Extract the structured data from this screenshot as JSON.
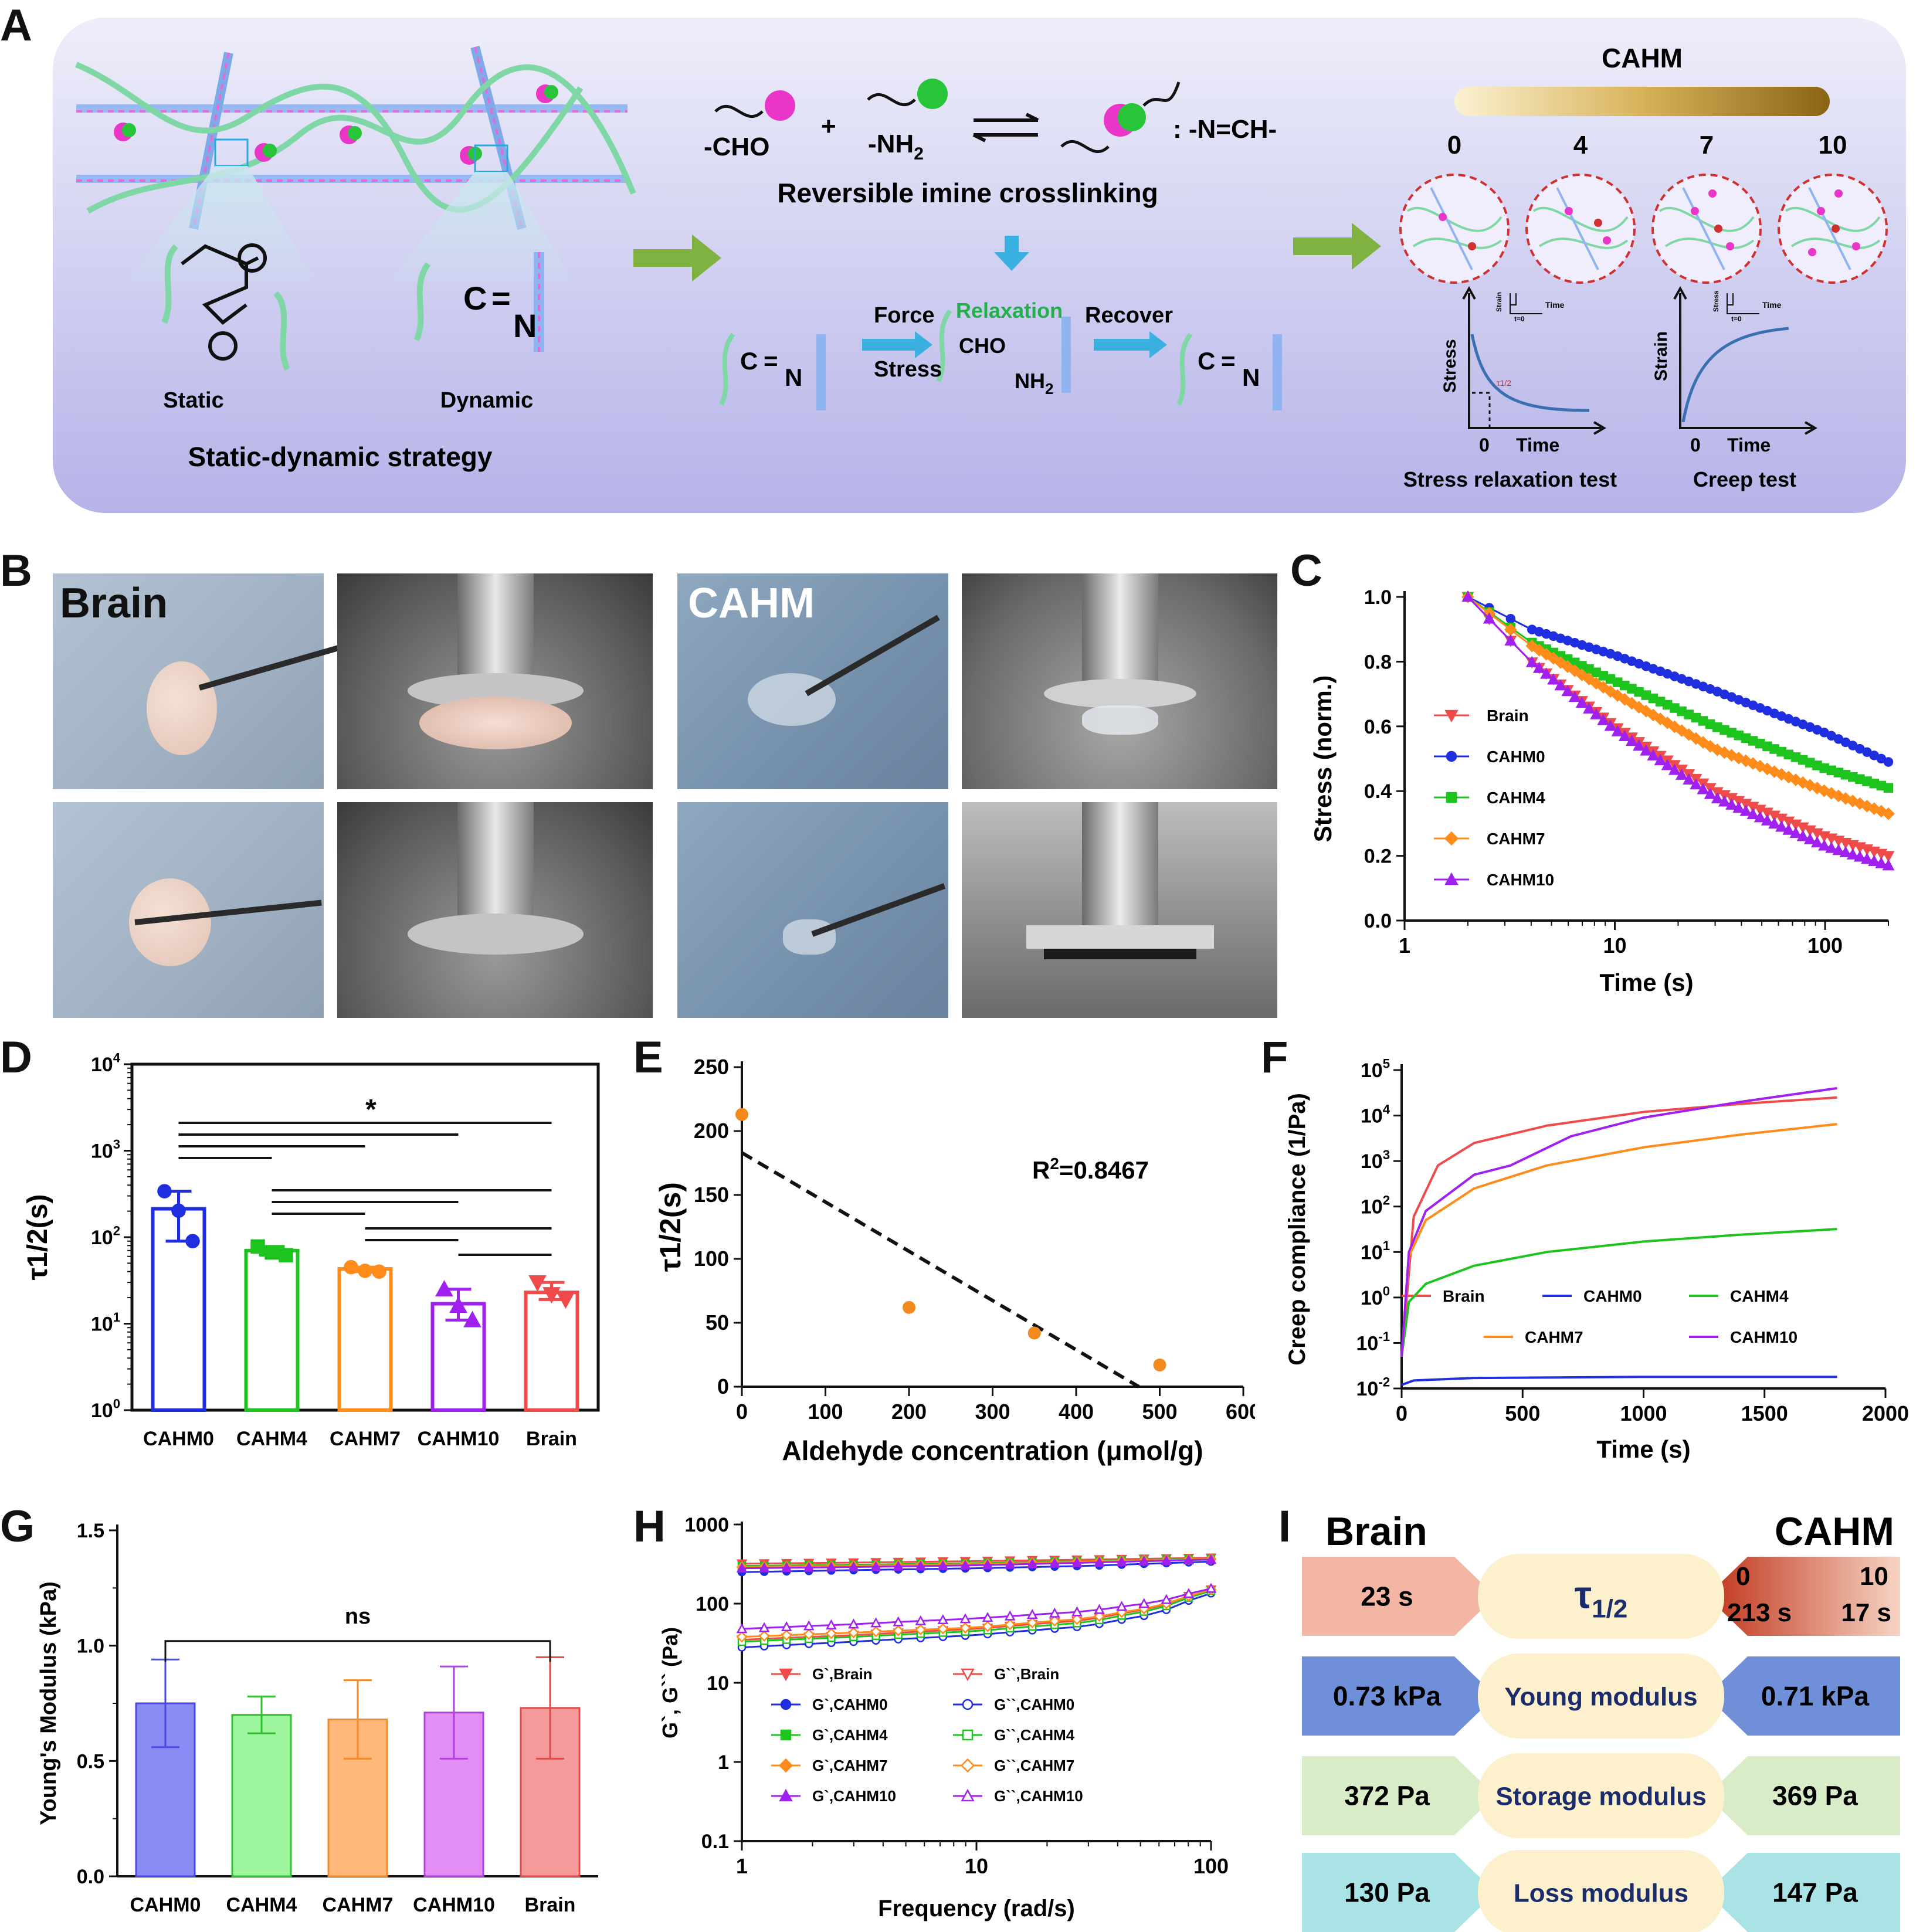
{
  "panel_letters": [
    "A",
    "B",
    "C",
    "D",
    "E",
    "F",
    "G",
    "H",
    "I"
  ],
  "panel_a": {
    "static_label": "Static",
    "dynamic_label": "Dynamic",
    "strategy_label": "Static-dynamic strategy",
    "cho": "-CHO",
    "plus": "+",
    "nh2": "-NH",
    "nh2_sub": "2",
    "imine": ": -N=CH-",
    "reversible": "Reversible imine crosslinking",
    "force": "Force",
    "stress": "Stress",
    "relaxation": "Relaxation",
    "recover": "Recover",
    "cho_fragment": "CHO",
    "nh2_fragment": "NH",
    "cahm_title": "CAHM",
    "cahm_levels": [
      "0",
      "4",
      "7",
      "10"
    ],
    "stress_axis": "Stress",
    "strain_axis": "Strain",
    "time_axis": "Time",
    "zero": "0",
    "tau_half": "τ1/2",
    "mini_strain": "Strain",
    "mini_stress": "Stress",
    "mini_time": "Time",
    "mini_t0": "t=0",
    "stress_test": "Stress relaxation test",
    "creep_test": "Creep test"
  },
  "panel_b": {
    "brain_label": "Brain",
    "cahm_label": "CAHM"
  },
  "chart_c": {
    "chart_data": {
      "type": "line",
      "xlabel": "Time (s)",
      "ylabel": "Stress (norm.)",
      "x_scale": "log",
      "xlim": [
        1,
        200
      ],
      "ylim": [
        0,
        1.0
      ],
      "x_ticks": [
        "1",
        "10",
        "100"
      ],
      "y_ticks": [
        "0.0",
        "0.2",
        "0.4",
        "0.6",
        "0.8",
        "1.0"
      ],
      "legend_position": "left",
      "series": [
        {
          "name": "Brain",
          "color": "#ef4b4b",
          "marker": "triangle-down",
          "x": [
            2,
            4,
            10,
            30,
            100,
            200
          ],
          "y": [
            1.0,
            0.8,
            0.6,
            0.4,
            0.26,
            0.2
          ]
        },
        {
          "name": "CAHM0",
          "color": "#1f2fe0",
          "marker": "circle",
          "x": [
            2,
            4,
            10,
            30,
            100,
            200
          ],
          "y": [
            1.0,
            0.9,
            0.82,
            0.71,
            0.58,
            0.49
          ]
        },
        {
          "name": "CAHM4",
          "color": "#1ec41e",
          "marker": "square",
          "x": [
            2,
            4,
            10,
            30,
            100,
            200
          ],
          "y": [
            1.0,
            0.86,
            0.74,
            0.6,
            0.47,
            0.41
          ]
        },
        {
          "name": "CAHM7",
          "color": "#ff8c1a",
          "marker": "diamond",
          "x": [
            2,
            4,
            10,
            30,
            100,
            200
          ],
          "y": [
            1.0,
            0.85,
            0.7,
            0.53,
            0.4,
            0.33
          ]
        },
        {
          "name": "CAHM10",
          "color": "#a020f0",
          "marker": "triangle-up",
          "x": [
            2,
            4,
            10,
            30,
            100,
            200
          ],
          "y": [
            1.0,
            0.8,
            0.59,
            0.38,
            0.23,
            0.17
          ]
        }
      ]
    }
  },
  "chart_d": {
    "chart_data": {
      "type": "bar",
      "ylabel": "τ1/2(s)",
      "y_scale": "log",
      "ylim": [
        1,
        10000
      ],
      "y_ticks": [
        "10^0",
        "10^1",
        "10^2",
        "10^3",
        "10^4"
      ],
      "categories": [
        "CAHM0",
        "CAHM4",
        "CAHM7",
        "CAHM10",
        "Brain"
      ],
      "values": [
        213,
        70,
        43,
        17,
        23
      ],
      "error_high": [
        340,
        78,
        45,
        25,
        30
      ],
      "error_low": [
        90,
        62,
        40,
        11,
        19
      ],
      "colors": [
        "#1f2fe0",
        "#1ec41e",
        "#ff8c1a",
        "#a020f0",
        "#ef4b4b"
      ],
      "significance": "*"
    }
  },
  "chart_e": {
    "chart_data": {
      "type": "scatter",
      "xlabel": "Aldehyde concentration (μmol/g)",
      "ylabel": "τ1/2(s)",
      "xlim": [
        0,
        600
      ],
      "ylim": [
        0,
        250
      ],
      "x_ticks": [
        "0",
        "100",
        "200",
        "300",
        "400",
        "500",
        "600"
      ],
      "y_ticks": [
        "0",
        "50",
        "100",
        "150",
        "200",
        "250"
      ],
      "points": [
        {
          "x": 0,
          "y": 213
        },
        {
          "x": 200,
          "y": 62
        },
        {
          "x": 350,
          "y": 42
        },
        {
          "x": 500,
          "y": 17
        }
      ],
      "fit_line": {
        "x": [
          0,
          475
        ],
        "y": [
          183,
          0
        ]
      },
      "r2_label": "R",
      "r2_sup": "2",
      "r2_value": "=0.8467"
    }
  },
  "chart_f": {
    "chart_data": {
      "type": "line",
      "xlabel": "Time (s)",
      "ylabel": "Creep compliance (1/Pa)",
      "y_scale": "log",
      "xlim": [
        0,
        2000
      ],
      "ylim": [
        0.01,
        100000
      ],
      "x_ticks": [
        "0",
        "500",
        "1000",
        "1500",
        "2000"
      ],
      "y_ticks": [
        "10^-2",
        "10^-1",
        "10^0",
        "10^1",
        "10^2",
        "10^3",
        "10^4",
        "10^5"
      ],
      "series": [
        {
          "name": "Brain",
          "color": "#ef4b4b",
          "x": [
            0,
            50,
            150,
            300,
            600,
            1000,
            1400,
            1800
          ],
          "y": [
            0.05,
            60,
            800,
            2500,
            6000,
            12000,
            18000,
            25000
          ]
        },
        {
          "name": "CAHM0",
          "color": "#1f2fe0",
          "x": [
            0,
            50,
            300,
            1000,
            1800
          ],
          "y": [
            0.012,
            0.015,
            0.017,
            0.018,
            0.018
          ]
        },
        {
          "name": "CAHM4",
          "color": "#1ec41e",
          "x": [
            0,
            30,
            100,
            300,
            600,
            1000,
            1400,
            1800
          ],
          "y": [
            0.05,
            0.8,
            2,
            5,
            10,
            17,
            24,
            32
          ]
        },
        {
          "name": "CAHM7",
          "color": "#ff8c1a",
          "x": [
            0,
            30,
            100,
            300,
            600,
            1000,
            1400,
            1800
          ],
          "y": [
            0.05,
            8,
            50,
            250,
            800,
            2000,
            3800,
            6500
          ]
        },
        {
          "name": "CAHM10",
          "color": "#a020f0",
          "x": [
            0,
            30,
            100,
            300,
            450,
            700,
            1000,
            1400,
            1800
          ],
          "y": [
            0.05,
            10,
            80,
            500,
            800,
            3500,
            9000,
            20000,
            40000
          ]
        }
      ]
    }
  },
  "chart_g": {
    "chart_data": {
      "type": "bar",
      "ylabel": "Young's Modulus (kPa)",
      "ylim": [
        0,
        1.5
      ],
      "y_ticks": [
        "0.0",
        "0.5",
        "1.0",
        "1.5"
      ],
      "categories": [
        "CAHM0",
        "CAHM4",
        "CAHM7",
        "CAHM10",
        "Brain"
      ],
      "values": [
        0.75,
        0.7,
        0.68,
        0.71,
        0.73
      ],
      "error": [
        0.19,
        0.08,
        0.17,
        0.2,
        0.22
      ],
      "colors": [
        "#8b8bf5",
        "#9df59d",
        "#ffb77a",
        "#e38ef5",
        "#f59a9a"
      ],
      "edge_colors": [
        "#4a4ae0",
        "#2ec22e",
        "#f08a2a",
        "#b040e0",
        "#e04a4a"
      ],
      "significance": "ns"
    }
  },
  "chart_h": {
    "chart_data": {
      "type": "line",
      "xlabel": "Frequency (rad/s)",
      "ylabel": "G`, G`` (Pa)",
      "x_scale": "log",
      "y_scale": "log",
      "xlim": [
        1,
        100
      ],
      "ylim": [
        0.1,
        1000
      ],
      "x_ticks": [
        "1",
        "10",
        "100"
      ],
      "y_ticks": [
        "0.1",
        "1",
        "10",
        "100",
        "1000"
      ],
      "series": [
        {
          "name": "G`,Brain",
          "color": "#ef4b4b",
          "marker": "triangle-down",
          "filled": true,
          "x": [
            1,
            3,
            10,
            30,
            100
          ],
          "y": [
            320,
            330,
            345,
            360,
            380
          ]
        },
        {
          "name": "G``,Brain",
          "color": "#ef4b4b",
          "marker": "triangle-down",
          "filled": false,
          "x": [
            1,
            3,
            10,
            30,
            60,
            100
          ],
          "y": [
            35,
            40,
            48,
            62,
            90,
            150
          ]
        },
        {
          "name": "G`,CAHM0",
          "color": "#1f2fe0",
          "marker": "circle",
          "filled": true,
          "x": [
            1,
            3,
            10,
            30,
            100
          ],
          "y": [
            250,
            265,
            280,
            300,
            340
          ]
        },
        {
          "name": "G``,CAHM0",
          "color": "#1f2fe0",
          "marker": "circle",
          "filled": false,
          "x": [
            1,
            3,
            10,
            30,
            60,
            100
          ],
          "y": [
            28,
            33,
            40,
            52,
            75,
            135
          ]
        },
        {
          "name": "G`,CAHM4",
          "color": "#1ec41e",
          "marker": "square",
          "filled": true,
          "x": [
            1,
            3,
            10,
            30,
            100
          ],
          "y": [
            300,
            310,
            325,
            345,
            370
          ]
        },
        {
          "name": "G``,CAHM4",
          "color": "#1ec41e",
          "marker": "square",
          "filled": false,
          "x": [
            1,
            3,
            10,
            30,
            60,
            100
          ],
          "y": [
            33,
            38,
            45,
            58,
            85,
            145
          ]
        },
        {
          "name": "G`,CAHM7",
          "color": "#ff8c1a",
          "marker": "diamond",
          "filled": true,
          "x": [
            1,
            3,
            10,
            30,
            100
          ],
          "y": [
            290,
            300,
            315,
            340,
            365
          ]
        },
        {
          "name": "G``,CAHM7",
          "color": "#ff8c1a",
          "marker": "diamond",
          "filled": false,
          "x": [
            1,
            3,
            10,
            30,
            60,
            100
          ],
          "y": [
            38,
            43,
            50,
            65,
            92,
            150
          ]
        },
        {
          "name": "G`,CAHM10",
          "color": "#a020f0",
          "marker": "triangle-up",
          "filled": true,
          "x": [
            1,
            3,
            10,
            30,
            100
          ],
          "y": [
            280,
            290,
            305,
            330,
            360
          ]
        },
        {
          "name": "G``,CAHM10",
          "color": "#a020f0",
          "marker": "triangle-up",
          "filled": false,
          "x": [
            1,
            3,
            10,
            30,
            60,
            100
          ],
          "y": [
            48,
            55,
            65,
            80,
            105,
            155
          ]
        }
      ]
    }
  },
  "panel_i": {
    "brain_title": "Brain",
    "cahm_title": "CAHM",
    "rows": [
      {
        "left": "23 s",
        "center": "τ",
        "center_sub": "1/2",
        "right_top_left": "0",
        "right_top_right": "10",
        "right_bottom_left": "213 s",
        "right_bottom_right": "17 s",
        "left_color": "#f3b6a4",
        "right_color": "#d0492a",
        "center_color": "#fdf0cc"
      },
      {
        "left": "0.73 kPa",
        "center": "Young modulus",
        "right": "0.71 kPa",
        "left_color": "#6f8fd8",
        "right_color": "#6f8fd8",
        "center_color": "#fdf0cc"
      },
      {
        "left": "372 Pa",
        "center": "Storage modulus",
        "right": "369 Pa",
        "left_color": "#d9ecc8",
        "right_color": "#d9ecc8",
        "center_color": "#fdf0cc"
      },
      {
        "left": "130 Pa",
        "center": "Loss modulus",
        "right": "147 Pa",
        "left_color": "#a9e3e6",
        "right_color": "#a9e3e6",
        "center_color": "#fdf0cc"
      }
    ]
  }
}
